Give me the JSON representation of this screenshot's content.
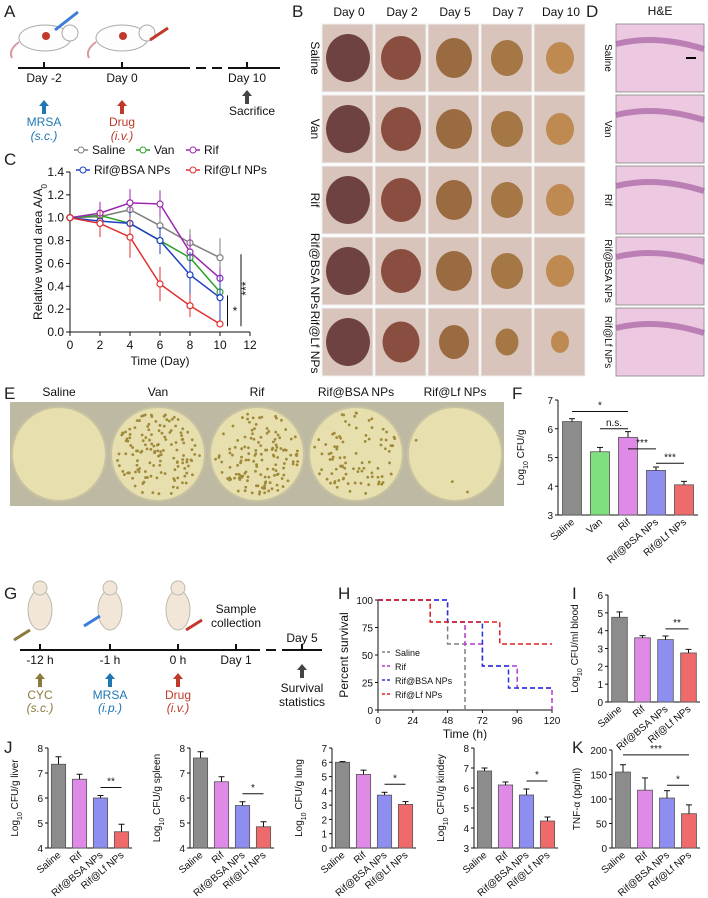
{
  "panels": {
    "A": {
      "letter": "A",
      "timeline": [
        "Day -2",
        "Day 0",
        "Day 10"
      ],
      "events": [
        {
          "label": "MRSA",
          "route": "(s.c.)",
          "color": "#1f77b4"
        },
        {
          "label": "Drug",
          "route": "(i.v.)",
          "color": "#c0392b"
        },
        {
          "label": "Sacrifice",
          "route": "",
          "color": "#333333"
        }
      ]
    },
    "B": {
      "letter": "B",
      "days": [
        "Day 0",
        "Day 2",
        "Day 5",
        "Day 7",
        "Day 10"
      ],
      "groups": [
        "Saline",
        "Van",
        "Rif",
        "Rif@BSA NPs",
        "Rif@Lf NPs"
      ]
    },
    "C": {
      "letter": "C",
      "legend": [
        "Saline",
        "Van",
        "Rif",
        "Rif@BSA NPs",
        "Rif@Lf NPs"
      ],
      "ylabel": "Relative wound area A/A",
      "ylabel_sub": "0",
      "xlabel": "Time (Day)",
      "sig": [
        "*",
        "***"
      ]
    },
    "D": {
      "letter": "D",
      "title": "H&E",
      "groups": [
        "Saline",
        "Van",
        "Rif",
        "Rif@BSA NPs",
        "Rif@Lf NPs"
      ]
    },
    "E": {
      "letter": "E",
      "groups": [
        "Saline",
        "Van",
        "Rif",
        "Rif@BSA NPs",
        "Rif@Lf NPs"
      ]
    },
    "F": {
      "letter": "F",
      "ylabel": "Log",
      "ylabel_sub": "10",
      "ylabel_tail": " CFU/g",
      "sig": [
        "*",
        "n.s.",
        "***",
        "***"
      ]
    },
    "G": {
      "letter": "G",
      "timeline": [
        "-12 h",
        "-1 h",
        "0 h",
        "Day 1",
        "Day 5"
      ],
      "events": [
        {
          "label": "CYC",
          "route": "(s.c.)",
          "color": "#8a7a3c"
        },
        {
          "label": "MRSA",
          "route": "(i.p.)",
          "color": "#1f77b4"
        },
        {
          "label": "Drug",
          "route": "(i.v.)",
          "color": "#c0392b"
        },
        {
          "label": "Sample collection",
          "route": "",
          "color": "#333333"
        },
        {
          "label": "Survival statistics",
          "route": "",
          "color": "#333333"
        }
      ],
      "sample_line1": "Sample",
      "sample_line2": "collection",
      "survival_line1": "Survival",
      "survival_line2": "statistics"
    },
    "H": {
      "letter": "H",
      "ylabel": "Percent survival",
      "xlabel": "Time (h)",
      "legend": [
        "Saline",
        "Rif",
        "Rif@BSA NPs",
        "Rif@Lf NPs"
      ]
    },
    "I": {
      "letter": "I",
      "ylabel": "Log",
      "ylabel_sub": "10",
      "ylabel_tail": " CFU/ml blood",
      "sig": [
        "**"
      ]
    },
    "J": {
      "letter": "J",
      "organs": [
        {
          "ylabel_tail": " CFU/g liver",
          "sig": "**"
        },
        {
          "ylabel_tail": " CFU/g spleen",
          "sig": "*"
        },
        {
          "ylabel_tail": " CFU/g lung",
          "sig": "*"
        },
        {
          "ylabel_tail": " CFU/g kindey",
          "sig": "*"
        }
      ]
    },
    "K": {
      "letter": "K",
      "ylabel": "TNF-α (pg/ml)",
      "sig": [
        "***",
        "*"
      ]
    }
  },
  "colors": {
    "saline": "#8c8c8c",
    "van": "#7ee07e",
    "rif": "#e08ae8",
    "bsa": "#8e8ef0",
    "lf": "#ef6a6a"
  },
  "chart_data": [
    {
      "type": "line",
      "panel": "C",
      "xlabel": "Time (Day)",
      "ylabel": "Relative wound area A/A0",
      "xlim": [
        0,
        12
      ],
      "ylim": [
        0,
        1.4
      ],
      "xticks": [
        0,
        2,
        4,
        6,
        8,
        10,
        12
      ],
      "yticks": [
        0,
        0.2,
        0.4,
        0.6,
        0.8,
        1.0,
        1.2,
        1.4
      ],
      "x": [
        0,
        2,
        4,
        6,
        8,
        10
      ],
      "series": [
        {
          "name": "Saline",
          "color": "#7f7f7f",
          "values": [
            1.0,
            1.01,
            1.07,
            0.93,
            0.78,
            0.65
          ],
          "err": [
            0.02,
            0.07,
            0.1,
            0.12,
            0.12,
            0.17
          ]
        },
        {
          "name": "Van",
          "color": "#2ca02c",
          "values": [
            1.0,
            1.02,
            0.95,
            0.8,
            0.65,
            0.35
          ],
          "err": [
            0.02,
            0.1,
            0.1,
            0.1,
            0.12,
            0.1
          ]
        },
        {
          "name": "Rif",
          "color": "#9c27b0",
          "values": [
            1.0,
            1.04,
            1.13,
            1.12,
            0.7,
            0.47
          ],
          "err": [
            0.02,
            0.1,
            0.12,
            0.12,
            0.15,
            0.1
          ]
        },
        {
          "name": "Rif@BSA NPs",
          "color": "#1f3fbf",
          "values": [
            1.0,
            0.97,
            0.95,
            0.8,
            0.5,
            0.3
          ],
          "err": [
            0.02,
            0.1,
            0.1,
            0.12,
            0.2,
            0.2
          ]
        },
        {
          "name": "Rif@Lf NPs",
          "color": "#e03030",
          "values": [
            1.0,
            0.95,
            0.83,
            0.42,
            0.23,
            0.07
          ],
          "err": [
            0.02,
            0.12,
            0.18,
            0.15,
            0.1,
            0.03
          ]
        }
      ]
    },
    {
      "type": "bar",
      "panel": "F",
      "ylabel": "Log10 CFU/g",
      "ylim": [
        3,
        7
      ],
      "yticks": [
        3,
        4,
        5,
        6,
        7
      ],
      "categories": [
        "Saline",
        "Van",
        "Rif",
        "Rif@BSA NPs",
        "Rif@Lf NPs"
      ],
      "values": [
        6.25,
        5.2,
        5.7,
        4.55,
        4.05
      ],
      "err": [
        0.1,
        0.15,
        0.2,
        0.12,
        0.12
      ]
    },
    {
      "type": "line",
      "panel": "H",
      "xlabel": "Time (h)",
      "ylabel": "Percent survival",
      "xlim": [
        0,
        120
      ],
      "ylim": [
        0,
        100
      ],
      "xticks": [
        0,
        24,
        48,
        72,
        96,
        120
      ],
      "yticks": [
        0,
        25,
        50,
        75,
        100
      ],
      "series": [
        {
          "name": "Saline",
          "color": "#7f7f7f",
          "points": [
            [
              0,
              100
            ],
            [
              36,
              100
            ],
            [
              36,
              80
            ],
            [
              48,
              80
            ],
            [
              48,
              60
            ],
            [
              60,
              60
            ],
            [
              60,
              0
            ]
          ]
        },
        {
          "name": "Rif",
          "color": "#b23bd1",
          "points": [
            [
              0,
              100
            ],
            [
              48,
              100
            ],
            [
              48,
              80
            ],
            [
              60,
              80
            ],
            [
              60,
              60
            ],
            [
              72,
              60
            ],
            [
              72,
              40
            ],
            [
              96,
              40
            ],
            [
              96,
              20
            ],
            [
              120,
              20
            ],
            [
              120,
              0
            ]
          ]
        },
        {
          "name": "Rif@BSA NPs",
          "color": "#2233dd",
          "points": [
            [
              0,
              100
            ],
            [
              48,
              100
            ],
            [
              48,
              80
            ],
            [
              72,
              80
            ],
            [
              72,
              40
            ],
            [
              90,
              40
            ],
            [
              90,
              20
            ],
            [
              120,
              20
            ]
          ]
        },
        {
          "name": "Rif@Lf NPs",
          "color": "#e02020",
          "points": [
            [
              0,
              100
            ],
            [
              36,
              100
            ],
            [
              36,
              80
            ],
            [
              84,
              80
            ],
            [
              84,
              60
            ],
            [
              120,
              60
            ]
          ]
        }
      ]
    },
    {
      "type": "bar",
      "panel": "I",
      "ylabel": "Log10 CFU/ml blood",
      "ylim": [
        0,
        6
      ],
      "yticks": [
        0,
        1,
        2,
        3,
        4,
        5,
        6
      ],
      "categories": [
        "Saline",
        "Rif",
        "Rif@BSA NPs",
        "Rif@Lf NPs"
      ],
      "values": [
        4.75,
        3.6,
        3.5,
        2.75
      ],
      "err": [
        0.3,
        0.12,
        0.2,
        0.2
      ]
    },
    {
      "type": "bar",
      "panel": "J-liver",
      "ylabel": "Log10 CFU/g liver",
      "ylim": [
        4,
        8
      ],
      "yticks": [
        4,
        5,
        6,
        7,
        8
      ],
      "categories": [
        "Saline",
        "Rif",
        "Rif@BSA NPs",
        "Rif@Lf NPs"
      ],
      "values": [
        7.35,
        6.75,
        6.0,
        4.65
      ],
      "err": [
        0.3,
        0.2,
        0.1,
        0.3
      ]
    },
    {
      "type": "bar",
      "panel": "J-spleen",
      "ylabel": "Log10 CFU/g spleen",
      "ylim": [
        4,
        8
      ],
      "yticks": [
        4,
        5,
        6,
        7,
        8
      ],
      "categories": [
        "Saline",
        "Rif",
        "Rif@BSA NPs",
        "Rif@Lf NPs"
      ],
      "values": [
        7.6,
        6.65,
        5.7,
        4.85
      ],
      "err": [
        0.25,
        0.2,
        0.15,
        0.2
      ]
    },
    {
      "type": "bar",
      "panel": "J-lung",
      "ylabel": "Log10 CFU/g lung",
      "ylim": [
        0,
        7
      ],
      "yticks": [
        0,
        1,
        2,
        3,
        4,
        5,
        6,
        7
      ],
      "categories": [
        "Saline",
        "Rif",
        "Rif@BSA NPs",
        "Rif@Lf NPs"
      ],
      "values": [
        6.0,
        5.15,
        3.7,
        3.05
      ],
      "err": [
        0.05,
        0.3,
        0.2,
        0.2
      ]
    },
    {
      "type": "bar",
      "panel": "J-kindey",
      "ylabel": "Log10 CFU/g kindey",
      "ylim": [
        3,
        8
      ],
      "yticks": [
        3,
        4,
        5,
        6,
        7,
        8
      ],
      "categories": [
        "Saline",
        "Rif",
        "Rif@BSA NPs",
        "Rif@Lf NPs"
      ],
      "values": [
        6.85,
        6.15,
        5.65,
        4.35
      ],
      "err": [
        0.15,
        0.15,
        0.3,
        0.2
      ]
    },
    {
      "type": "bar",
      "panel": "K",
      "ylabel": "TNF-α (pg/ml)",
      "ylim": [
        0,
        200
      ],
      "yticks": [
        0,
        50,
        100,
        150,
        200
      ],
      "categories": [
        "Saline",
        "Rif",
        "Rif@BSA NPs",
        "Rif@Lf NPs"
      ],
      "values": [
        155,
        118,
        102,
        70
      ],
      "err": [
        15,
        25,
        15,
        18
      ]
    }
  ]
}
